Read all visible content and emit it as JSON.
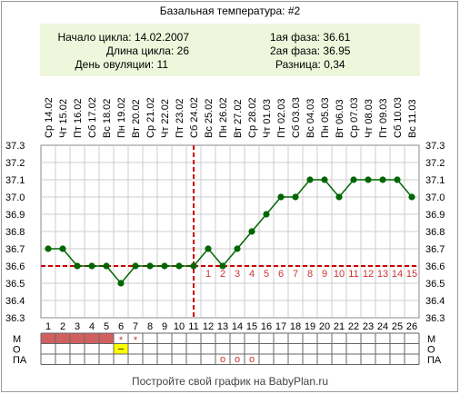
{
  "header": {
    "title": "Базальная температура: #2",
    "cycle_start": "Начало цикла: 14.02.2007",
    "cycle_length": "Длина цикла: 26",
    "ovulation_day": "День овуляции: 11",
    "phase1": "1ая фаза: 36.61",
    "phase2": "2ая фаза: 36.95",
    "difference": "Разница: 0,34"
  },
  "footer": {
    "text": "Постройте свой график на BabyPlan.ru"
  },
  "colors": {
    "line": "#006600",
    "marker": "#006600",
    "threshold": "#cc0000",
    "info_bg": "#eef7dc",
    "menses_fill": "#d06060",
    "yellow_fill": "#ffff00",
    "phase2_label": "#cc3333"
  },
  "chart_data": {
    "type": "line",
    "title": "Базальная температура: #2",
    "dates": [
      "Ср 14.02",
      "Чт 15.02",
      "Пт 16.02",
      "Сб 17.02",
      "Вс 18.02",
      "Пн 19.02",
      "Вт 20.02",
      "Ср 21.02",
      "Чт 22.02",
      "Пт 23.02",
      "Сб 24.02",
      "Вс 25.02",
      "Пн 26.02",
      "Вт 27.02",
      "Ср 28.02",
      "Чт 01.03",
      "Пт 02.03",
      "Сб 03.03",
      "Вс 04.03",
      "Пн 05.03",
      "Вт 06.03",
      "Ср 07.03",
      "Чт 08.03",
      "Пт 09.03",
      "Сб 10.03",
      "Вс 11.03"
    ],
    "x": [
      1,
      2,
      3,
      4,
      5,
      6,
      7,
      8,
      9,
      10,
      11,
      12,
      13,
      14,
      15,
      16,
      17,
      18,
      19,
      20,
      21,
      22,
      23,
      24,
      25,
      26
    ],
    "values": [
      36.7,
      36.7,
      36.6,
      36.6,
      36.6,
      36.5,
      36.6,
      36.6,
      36.6,
      36.6,
      36.6,
      36.7,
      36.6,
      36.7,
      36.8,
      36.9,
      37.0,
      37.0,
      37.1,
      37.1,
      37.0,
      37.1,
      37.1,
      37.1,
      37.1,
      37.0
    ],
    "ylim": [
      36.3,
      37.3
    ],
    "yticks": [
      "36.3",
      "36.4",
      "36.5",
      "36.6",
      "36.7",
      "36.8",
      "36.9",
      "37.0",
      "37.1",
      "37.2",
      "37.3"
    ],
    "threshold": 36.6,
    "ovulation_day": 11,
    "phase2_labels": [
      "1",
      "2",
      "3",
      "4",
      "5",
      "6",
      "7",
      "8",
      "9",
      "10",
      "11",
      "12",
      "13",
      "14",
      "15"
    ],
    "phase2_start_day": 12,
    "grid": true
  },
  "bottom_rows": {
    "labels": [
      "М",
      "О",
      "ПА"
    ],
    "menses_days": [
      1,
      2,
      3,
      4,
      5
    ],
    "star_days": [
      6,
      7
    ],
    "star_symbol": "*",
    "yellow_days": [
      6
    ],
    "yellow_symbol": "–",
    "pa_days": [
      13,
      14,
      15
    ],
    "pa_symbol": "о"
  }
}
